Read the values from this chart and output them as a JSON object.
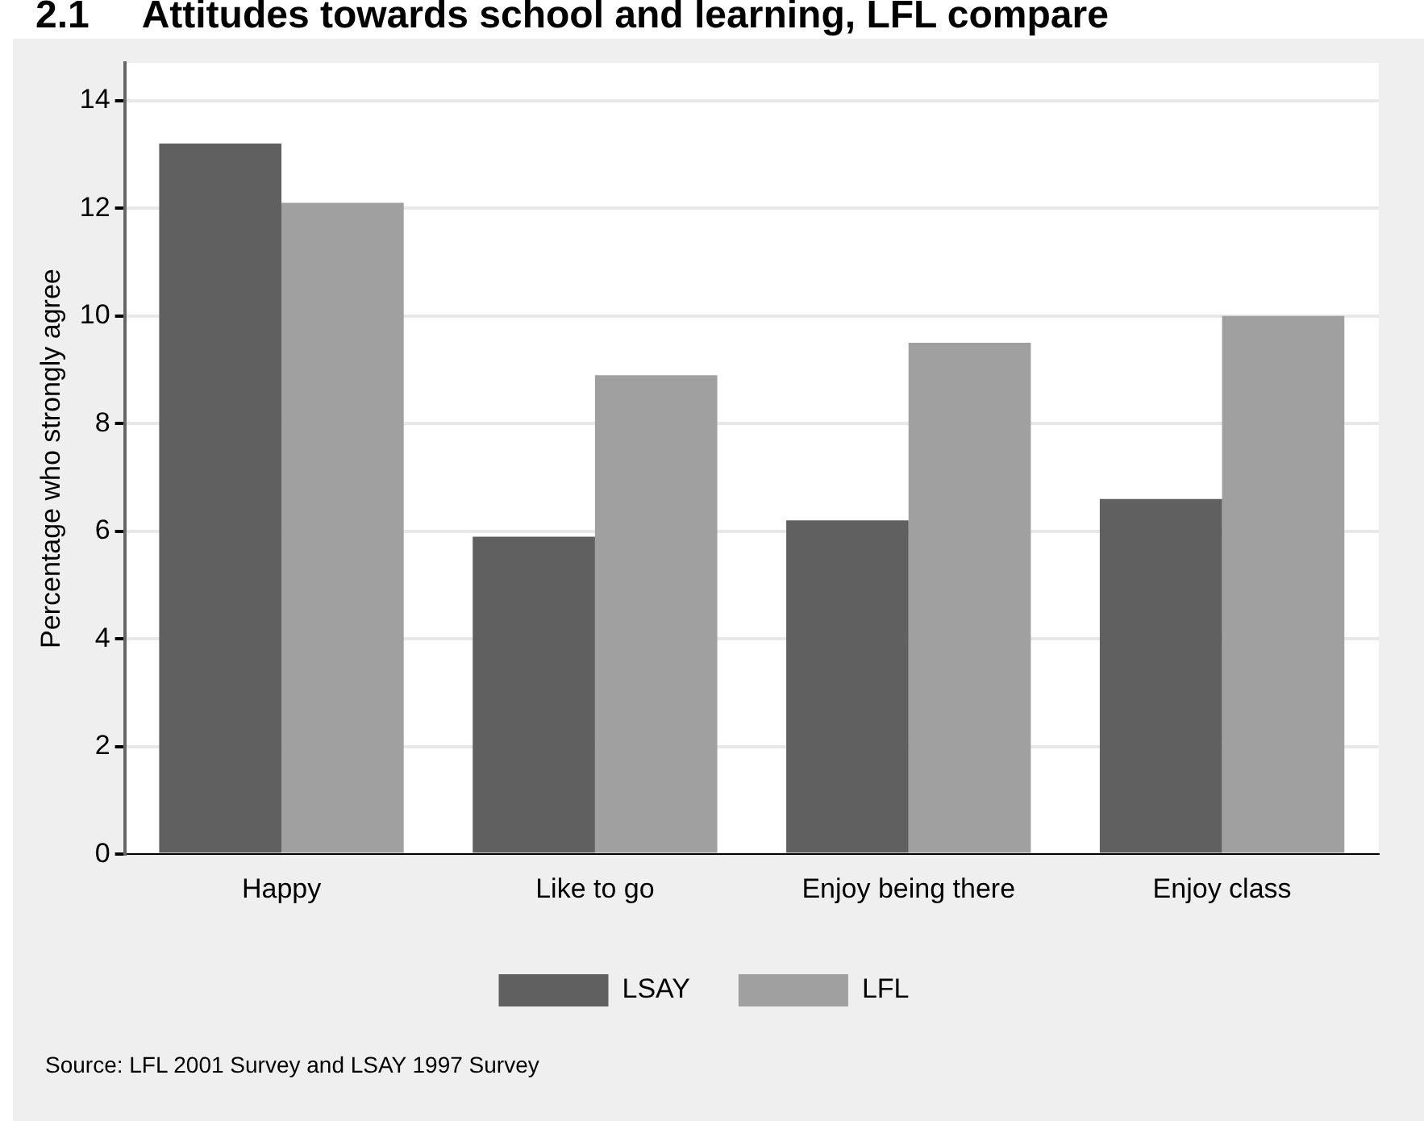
{
  "chart_data": {
    "type": "bar",
    "title": "2.1     Attitudes towards school and learning, LFL compare",
    "ylabel": "Percentage who strongly agree",
    "categories": [
      "Happy",
      "Like to go",
      "Enjoy being there",
      "Enjoy class"
    ],
    "series": [
      {
        "name": "LSAY",
        "color": "#606060",
        "values": [
          13.2,
          5.9,
          6.2,
          6.6
        ]
      },
      {
        "name": "LFL",
        "color": "#a0a0a0",
        "values": [
          12.1,
          8.9,
          9.5,
          10.0
        ]
      }
    ],
    "ylim": [
      0,
      14.7
    ],
    "yticks": [
      0,
      2,
      4,
      6,
      8,
      10,
      12,
      14
    ],
    "grid": "y",
    "legend": "bottom",
    "annotations": [
      "Source: LFL 2001 Survey and LSAY 1997 Survey"
    ]
  }
}
